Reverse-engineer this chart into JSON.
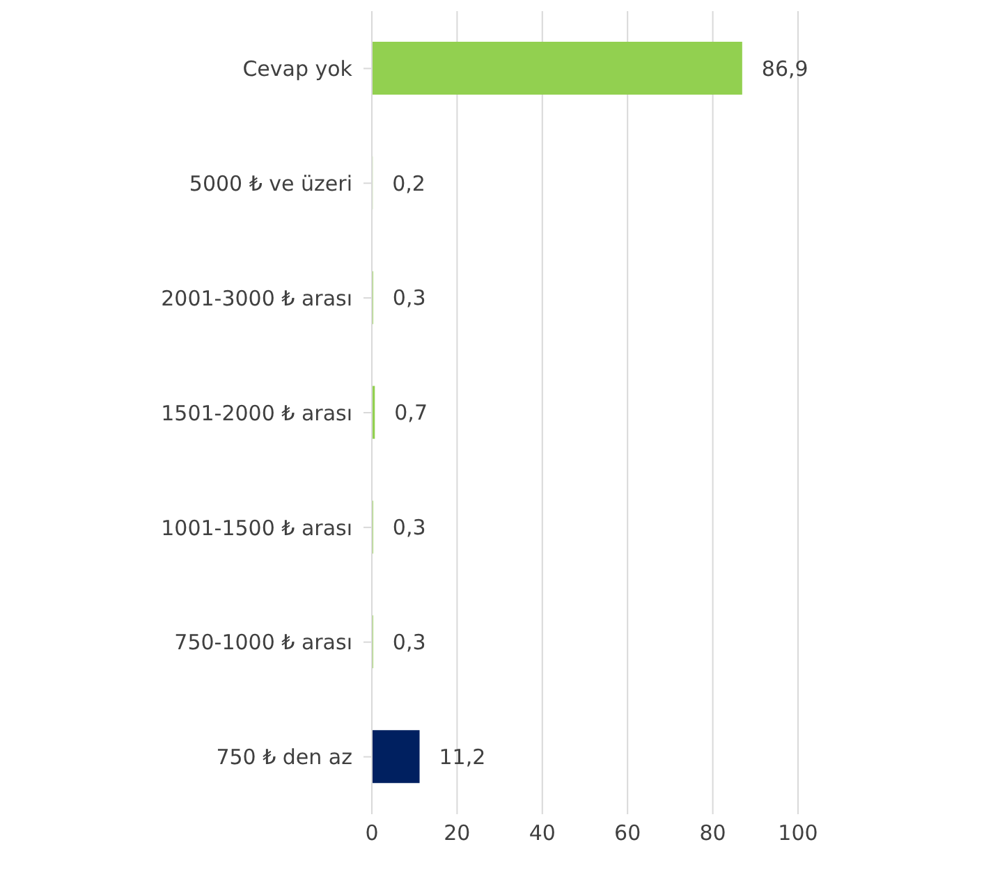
{
  "chart_data": {
    "type": "bar",
    "orientation": "horizontal",
    "categories": [
      "Cevap yok",
      "5000 ₺ ve üzeri",
      "2001-3000 ₺ arası",
      "1501-2000 ₺ arası",
      "1001-1500 ₺ arası",
      "750-1000 ₺ arası",
      "750 ₺ den az"
    ],
    "values": [
      86.9,
      0.2,
      0.3,
      0.7,
      0.3,
      0.3,
      11.2
    ],
    "colors": [
      "#92d050",
      "#92d050",
      "#92d050",
      "#92d050",
      "#92d050",
      "#92d050",
      "#002060"
    ],
    "value_labels": [
      "86,9",
      "0,2",
      "0,3",
      "0,7",
      "0,3",
      "0,3",
      "11,2"
    ],
    "xlim": [
      0,
      100
    ],
    "xticks": [
      0,
      20,
      40,
      60,
      80,
      100
    ],
    "grid": "x",
    "legend": false
  }
}
